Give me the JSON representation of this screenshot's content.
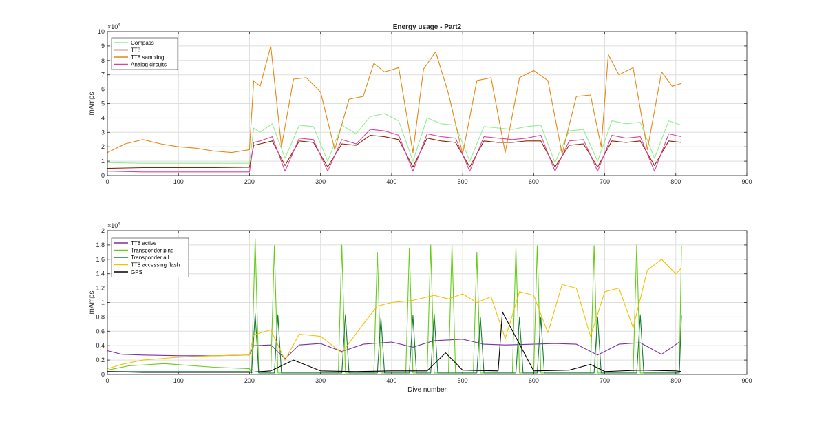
{
  "chart_data": [
    {
      "type": "line",
      "title": "Energy usage - Part2",
      "xlabel": "",
      "ylabel": "mAmps",
      "exponent_label": "×10",
      "exponent_power": "4",
      "xlim": [
        0,
        900
      ],
      "ylim": [
        0,
        100000
      ],
      "grid": true,
      "legend_placement": "top-left",
      "xticks": [
        0,
        100,
        200,
        300,
        400,
        500,
        600,
        700,
        800,
        900
      ],
      "yticks": [
        0,
        10000,
        20000,
        30000,
        40000,
        50000,
        60000,
        70000,
        80000,
        90000,
        100000
      ],
      "ytick_labels": [
        "0",
        "1",
        "2",
        "3",
        "4",
        "5",
        "6",
        "7",
        "8",
        "9",
        "10"
      ],
      "series": [
        {
          "name": "Compass",
          "color": "#90ee90",
          "x": [
            0,
            50,
            100,
            150,
            200,
            206,
            215,
            232,
            250,
            270,
            290,
            310,
            330,
            350,
            370,
            390,
            410,
            430,
            450,
            470,
            490,
            510,
            530,
            550,
            570,
            590,
            610,
            630,
            650,
            670,
            690,
            710,
            730,
            750,
            770,
            790,
            808
          ],
          "values": [
            9000,
            8500,
            8500,
            8500,
            8500,
            33000,
            30000,
            36000,
            12000,
            35000,
            34000,
            10000,
            35000,
            29000,
            41000,
            43000,
            38000,
            10000,
            40000,
            36000,
            35000,
            10000,
            34000,
            33000,
            32000,
            34000,
            35000,
            9000,
            31000,
            32000,
            10000,
            38000,
            36000,
            37000,
            12000,
            38000,
            35000
          ]
        },
        {
          "name": "TT8",
          "color": "#8b2500",
          "x": [
            0,
            50,
            100,
            150,
            200,
            206,
            215,
            232,
            250,
            270,
            290,
            310,
            330,
            350,
            370,
            390,
            410,
            430,
            450,
            470,
            490,
            510,
            530,
            550,
            570,
            590,
            610,
            630,
            650,
            670,
            690,
            710,
            730,
            750,
            770,
            790,
            808
          ],
          "values": [
            5000,
            5500,
            5500,
            5500,
            5800,
            21000,
            22000,
            24000,
            7000,
            24000,
            23000,
            6000,
            22000,
            21000,
            28000,
            27000,
            25000,
            6000,
            26000,
            24000,
            23000,
            6000,
            24000,
            23000,
            23000,
            24000,
            24000,
            6000,
            21000,
            22000,
            6000,
            24000,
            23000,
            24000,
            7000,
            24000,
            23000
          ]
        },
        {
          "name": "TT8 sampling",
          "color": "#e8870f",
          "x": [
            0,
            25,
            50,
            75,
            100,
            125,
            150,
            175,
            200,
            206,
            215,
            230,
            245,
            262,
            280,
            300,
            320,
            340,
            360,
            375,
            390,
            410,
            430,
            445,
            462,
            480,
            500,
            520,
            540,
            560,
            580,
            600,
            620,
            640,
            660,
            680,
            695,
            705,
            720,
            740,
            760,
            780,
            795,
            808
          ],
          "values": [
            16000,
            22000,
            25000,
            22000,
            20000,
            19000,
            17000,
            16000,
            18000,
            66000,
            62000,
            90000,
            20000,
            67000,
            68000,
            58000,
            18000,
            53000,
            55000,
            78000,
            72000,
            75000,
            16000,
            74000,
            86000,
            57000,
            15000,
            66000,
            68000,
            16000,
            68000,
            73000,
            66000,
            15000,
            55000,
            56000,
            20000,
            84000,
            70000,
            75000,
            18000,
            72000,
            62000,
            64000
          ]
        },
        {
          "name": "Analog circuits",
          "color": "#e0409a",
          "x": [
            0,
            50,
            100,
            150,
            200,
            206,
            215,
            232,
            250,
            270,
            290,
            310,
            330,
            350,
            370,
            390,
            410,
            430,
            450,
            470,
            490,
            510,
            530,
            550,
            570,
            590,
            610,
            630,
            650,
            670,
            690,
            710,
            730,
            750,
            770,
            790,
            808
          ],
          "values": [
            3000,
            2500,
            2500,
            2500,
            2500,
            23000,
            24000,
            27000,
            3000,
            26000,
            25000,
            3000,
            25000,
            22000,
            32000,
            31000,
            28000,
            3000,
            29000,
            27000,
            26000,
            3000,
            27000,
            26000,
            25000,
            26000,
            28000,
            3000,
            24000,
            25000,
            3000,
            28000,
            26000,
            27000,
            3000,
            29000,
            27000
          ]
        }
      ]
    },
    {
      "type": "line",
      "title": "",
      "xlabel": "Dive number",
      "ylabel": "mAmps",
      "exponent_label": "×10",
      "exponent_power": "4",
      "xlim": [
        0,
        900
      ],
      "ylim": [
        0,
        20000
      ],
      "grid": true,
      "legend_placement": "top-left",
      "xticks": [
        0,
        100,
        200,
        300,
        400,
        500,
        600,
        700,
        800,
        900
      ],
      "yticks": [
        0,
        2000,
        4000,
        6000,
        8000,
        10000,
        12000,
        14000,
        16000,
        18000,
        20000
      ],
      "ytick_labels": [
        "0",
        "0.2",
        "0.4",
        "0.6",
        "0.8",
        "1",
        "1.2",
        "1.4",
        "1.6",
        "1.8",
        "2"
      ],
      "series": [
        {
          "name": "TT8 active",
          "color": "#7b2fa8",
          "x": [
            0,
            20,
            50,
            100,
            150,
            200,
            206,
            230,
            250,
            270,
            300,
            330,
            360,
            400,
            430,
            460,
            500,
            530,
            560,
            600,
            630,
            660,
            690,
            720,
            750,
            780,
            808
          ],
          "values": [
            3300,
            2800,
            2700,
            2600,
            2600,
            2700,
            4000,
            4100,
            2200,
            4100,
            4300,
            3200,
            4200,
            4500,
            3800,
            4700,
            4900,
            4200,
            4100,
            4200,
            4300,
            4200,
            2700,
            4200,
            4400,
            2800,
            4700
          ]
        },
        {
          "name": "Transponder ping",
          "color": "#66cc1a",
          "x": [
            0,
            30,
            80,
            150,
            200,
            203,
            208,
            213,
            230,
            235,
            240,
            300,
            325,
            330,
            335,
            375,
            380,
            385,
            420,
            425,
            430,
            450,
            455,
            460,
            480,
            485,
            490,
            515,
            520,
            525,
            570,
            575,
            580,
            600,
            605,
            610,
            680,
            685,
            690,
            740,
            745,
            750,
            805,
            808
          ],
          "values": [
            600,
            1200,
            1500,
            1000,
            800,
            200,
            18900,
            200,
            200,
            17900,
            200,
            200,
            200,
            18000,
            200,
            200,
            17000,
            200,
            200,
            17500,
            200,
            200,
            18000,
            200,
            200,
            18000,
            200,
            200,
            17000,
            200,
            200,
            17600,
            200,
            200,
            17900,
            200,
            200,
            17900,
            200,
            200,
            18000,
            200,
            200,
            17800
          ]
        },
        {
          "name": "Transponder all",
          "color": "#1a7a3a",
          "x": [
            0,
            100,
            200,
            203,
            208,
            213,
            235,
            240,
            245,
            330,
            335,
            340,
            380,
            385,
            390,
            425,
            430,
            435,
            455,
            460,
            465,
            520,
            525,
            530,
            575,
            580,
            585,
            605,
            610,
            615,
            685,
            690,
            695,
            745,
            750,
            755,
            805,
            808
          ],
          "values": [
            400,
            400,
            400,
            200,
            8500,
            200,
            200,
            8300,
            200,
            200,
            8300,
            200,
            200,
            7900,
            200,
            200,
            8200,
            200,
            200,
            8400,
            200,
            200,
            8000,
            200,
            200,
            7900,
            200,
            200,
            8000,
            200,
            200,
            8000,
            200,
            200,
            8300,
            200,
            200,
            8200
          ]
        },
        {
          "name": "TT8 accessing flash",
          "color": "#f2c200",
          "x": [
            0,
            20,
            50,
            100,
            150,
            200,
            206,
            230,
            250,
            270,
            300,
            330,
            360,
            380,
            400,
            430,
            460,
            480,
            500,
            520,
            540,
            560,
            580,
            600,
            620,
            640,
            660,
            680,
            700,
            720,
            740,
            760,
            780,
            800,
            808
          ],
          "values": [
            800,
            1400,
            2000,
            2400,
            2600,
            2700,
            5500,
            6200,
            2000,
            5600,
            5300,
            3000,
            7000,
            9500,
            10000,
            10300,
            11000,
            10500,
            11200,
            10000,
            10800,
            5000,
            11500,
            11000,
            5800,
            12500,
            12000,
            5300,
            11500,
            12000,
            6500,
            14500,
            16000,
            14000,
            14800
          ]
        },
        {
          "name": "GPS",
          "color": "#000000",
          "x": [
            0,
            50,
            100,
            150,
            200,
            230,
            262,
            300,
            350,
            400,
            450,
            476,
            500,
            550,
            556,
            600,
            650,
            680,
            700,
            750,
            800,
            808
          ],
          "values": [
            400,
            300,
            300,
            300,
            300,
            500,
            2000,
            500,
            400,
            500,
            500,
            3000,
            600,
            500,
            8700,
            500,
            600,
            1400,
            400,
            600,
            500,
            400
          ]
        }
      ]
    }
  ]
}
